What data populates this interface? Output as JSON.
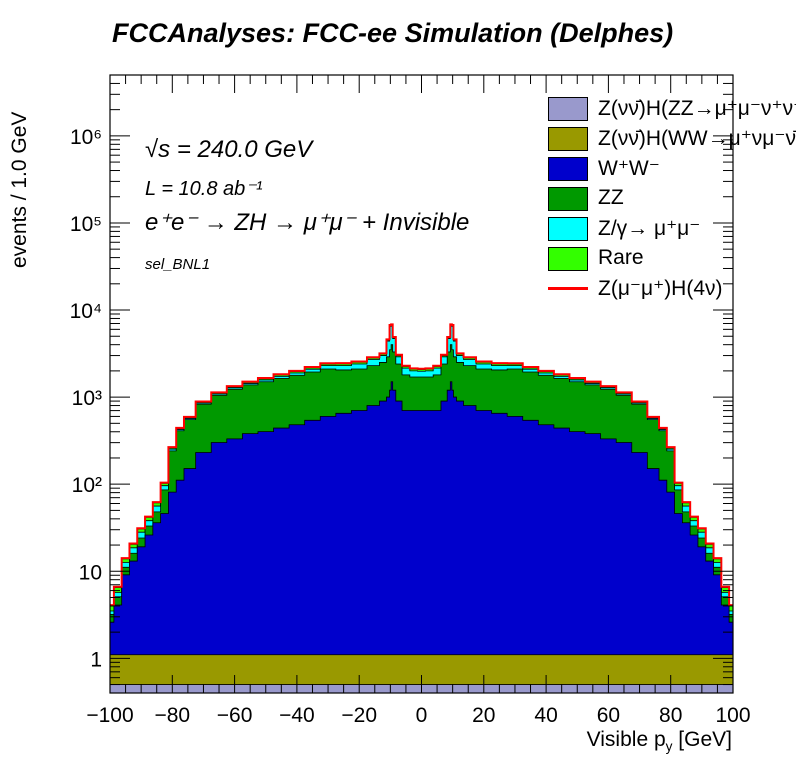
{
  "title": "FCCAnalyses: FCC-ee Simulation (Delphes)",
  "annotations": {
    "sqrt_s": "√s = 240.0 GeV",
    "luminosity": "L = 10.8 ab⁻¹",
    "process": "e⁺e⁻ → ZH → μ⁺μ⁻ + Invisible",
    "selection": "sel_BNL1"
  },
  "chart_data": {
    "type": "area",
    "stacked": true,
    "histogram": true,
    "xlabel": "Visible p_y [GeV]",
    "ylabel": "events / 1.0 GeV",
    "xlim": [
      -100,
      100
    ],
    "ylim": [
      0.4,
      5000000
    ],
    "ylog": true,
    "x_ticks": [
      "−100",
      "−80",
      "−60",
      "−40",
      "−20",
      "0",
      "20",
      "40",
      "60",
      "80",
      "100"
    ],
    "y_ticks": [
      "1",
      "10",
      "10²",
      "10³",
      "10⁴",
      "10⁵",
      "10⁶"
    ],
    "legend_position": "top-right",
    "x": [
      -100,
      -97.5,
      -95,
      -92.5,
      -90,
      -87.5,
      -85,
      -82.5,
      -80,
      -77.5,
      -75,
      -70,
      -65,
      -60,
      -55,
      -50,
      -45,
      -40,
      -35,
      -30,
      -25,
      -20,
      -15,
      -12,
      -10.5,
      -10,
      -9.5,
      -9,
      -7.5,
      -5,
      -2.5,
      0,
      2.5,
      5,
      7.5,
      9,
      9.5,
      10,
      10.5,
      12,
      15,
      20,
      25,
      30,
      35,
      40,
      45,
      50,
      55,
      60,
      65,
      70,
      75,
      77.5,
      80,
      82.5,
      85,
      87.5,
      90,
      92.5,
      95,
      97.5,
      100
    ],
    "series": [
      {
        "name": "Z(νν̄)H(ZZ→μ⁺μ⁻ν⁺ν⁻)",
        "color": "#9999cc",
        "values": [
          0.5,
          0.5,
          0.5,
          0.5,
          0.5,
          0.5,
          0.5,
          0.5,
          0.5,
          0.5,
          0.5,
          0.5,
          0.5,
          0.5,
          0.5,
          0.5,
          0.5,
          0.5,
          0.5,
          0.5,
          0.5,
          0.5,
          0.5,
          0.5,
          0.5,
          0.5,
          0.5,
          0.5,
          0.5,
          0.5,
          0.5,
          0.5,
          0.5,
          0.5,
          0.5,
          0.5,
          0.5,
          0.5,
          0.5,
          0.5,
          0.5,
          0.5,
          0.5,
          0.5,
          0.5,
          0.5,
          0.5,
          0.5,
          0.5,
          0.5,
          0.5,
          0.5,
          0.5,
          0.5,
          0.5,
          0.5,
          0.5,
          0.5,
          0.5,
          0.5,
          0.5,
          0.5,
          0.5
        ]
      },
      {
        "name": "Z(νν̄)H(WW→μ⁺νμ⁻ν̄)",
        "color": "#999900",
        "values": [
          0.6,
          0.6,
          0.6,
          0.6,
          0.6,
          0.6,
          0.6,
          0.6,
          0.6,
          0.6,
          0.6,
          0.6,
          0.6,
          0.6,
          0.6,
          0.6,
          0.6,
          0.6,
          0.6,
          0.6,
          0.6,
          0.6,
          0.6,
          0.6,
          0.6,
          0.6,
          0.6,
          0.6,
          0.6,
          0.6,
          0.6,
          0.6,
          0.6,
          0.6,
          0.6,
          0.6,
          0.6,
          0.6,
          0.6,
          0.6,
          0.6,
          0.6,
          0.6,
          0.6,
          0.6,
          0.6,
          0.6,
          0.6,
          0.6,
          0.6,
          0.6,
          0.6,
          0.6,
          0.6,
          0.6,
          0.6,
          0.6,
          0.6,
          0.6,
          0.6,
          0.6,
          0.6,
          0.6
        ]
      },
      {
        "name": "W⁺W⁻",
        "color": "#0000cc",
        "values": [
          1.5,
          3,
          8,
          12,
          18,
          25,
          35,
          45,
          80,
          110,
          150,
          230,
          300,
          330,
          380,
          400,
          440,
          480,
          540,
          600,
          650,
          700,
          800,
          900,
          1000,
          1200,
          1500,
          1200,
          900,
          700,
          700,
          700,
          700,
          700,
          900,
          1200,
          1500,
          1200,
          1000,
          900,
          800,
          700,
          650,
          600,
          540,
          480,
          440,
          400,
          380,
          330,
          300,
          230,
          150,
          110,
          80,
          45,
          35,
          25,
          18,
          12,
          8,
          3,
          1.5
        ]
      },
      {
        "name": "ZZ",
        "color": "#009900",
        "values": [
          0.6,
          1,
          2,
          3,
          5,
          7,
          12,
          40,
          160,
          300,
          400,
          600,
          750,
          900,
          1000,
          1100,
          1200,
          1300,
          1400,
          1500,
          1400,
          1400,
          1500,
          1600,
          1900,
          2300,
          2500,
          2100,
          1500,
          1100,
          1000,
          1000,
          1000,
          1100,
          1500,
          2100,
          2500,
          2300,
          1900,
          1600,
          1500,
          1400,
          1400,
          1500,
          1400,
          1300,
          1200,
          1100,
          1000,
          900,
          750,
          600,
          400,
          300,
          160,
          40,
          12,
          7,
          5,
          3,
          2,
          1,
          0.6
        ]
      },
      {
        "name": "Z/γ→ μ⁺μ⁻",
        "color": "#00ffff",
        "values": [
          0.3,
          0.6,
          1.5,
          2.5,
          4,
          5,
          8,
          10,
          12,
          14,
          18,
          25,
          35,
          45,
          55,
          70,
          90,
          110,
          150,
          200,
          250,
          300,
          400,
          500,
          1500,
          3000,
          2600,
          1400,
          500,
          350,
          300,
          280,
          300,
          350,
          500,
          1400,
          2600,
          3000,
          1500,
          500,
          400,
          300,
          250,
          200,
          150,
          110,
          90,
          70,
          55,
          45,
          35,
          25,
          18,
          14,
          12,
          10,
          8,
          5,
          4,
          2.5,
          1.5,
          0.6,
          0.3
        ]
      },
      {
        "name": "Rare",
        "color": "#33ff00",
        "values": [
          0.5,
          0.8,
          1.3,
          1.8,
          2.5,
          3.5,
          5,
          6,
          8,
          10,
          13,
          18,
          25,
          33,
          42,
          52,
          62,
          72,
          82,
          95,
          105,
          112,
          115,
          112,
          110,
          108,
          106,
          104,
          100,
          98,
          96,
          95,
          96,
          98,
          100,
          104,
          106,
          108,
          110,
          112,
          115,
          112,
          105,
          95,
          82,
          72,
          62,
          52,
          42,
          33,
          25,
          18,
          13,
          10,
          8,
          6,
          5,
          3.5,
          2.5,
          1.8,
          1.3,
          0.8,
          0.5
        ]
      }
    ],
    "overlay": {
      "name": "Z(μ⁻μ⁺)H(4ν)",
      "color": "#ff0000"
    }
  },
  "legend": [
    {
      "label": "Z(νν̄)H(ZZ→μ⁺μ⁻ν⁺ν⁻)",
      "color": "#9999cc",
      "kind": "box"
    },
    {
      "label": "Z(νν̄)H(WW→μ⁺νμ⁻ν̄)",
      "color": "#999900",
      "kind": "box"
    },
    {
      "label": "W⁺W⁻",
      "color": "#0000cc",
      "kind": "box"
    },
    {
      "label": "ZZ",
      "color": "#009900",
      "kind": "box"
    },
    {
      "label": "Z/γ→ μ⁺μ⁻",
      "color": "#00ffff",
      "kind": "box"
    },
    {
      "label": "Rare",
      "color": "#33ff00",
      "kind": "box"
    },
    {
      "label": "Z(μ⁻μ⁺)H(4ν)",
      "color": "#ff0000",
      "kind": "line"
    }
  ]
}
